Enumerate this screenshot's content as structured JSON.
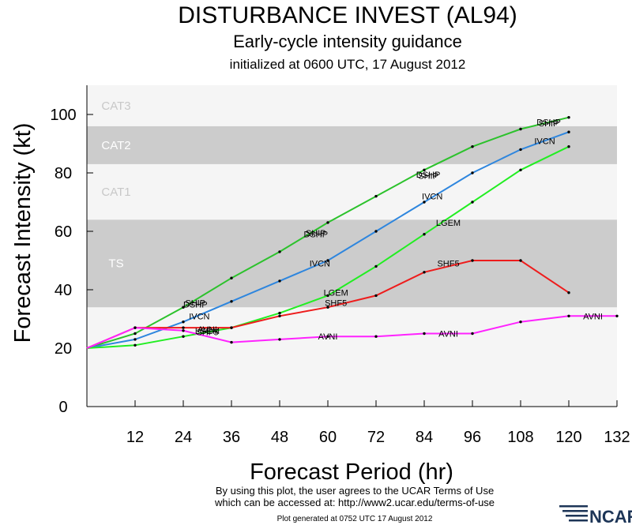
{
  "title": "DISTURBANCE INVEST (AL94)",
  "subtitle": "Early-cycle intensity guidance",
  "initialized": "initialized at 0600 UTC, 17 August 2012",
  "footer": {
    "terms_line1": "By using this plot, the user agrees to the UCAR Terms of Use",
    "terms_line2": "which can be accessed at: http://www2.ucar.edu/terms-of-use",
    "generated": "Plot generated at 0752 UTC   17 August 2012",
    "logo": "NCAR"
  },
  "colors": {
    "bands_dark": "#cccccc",
    "bands_light": "#f5f5f5",
    "ship_dshp": "#2cc22c",
    "ivcn": "#2e86de",
    "lgem": "#22ee22",
    "shf5": "#ee1c1c",
    "avni": "#ff22ff"
  },
  "chart_data": {
    "type": "line",
    "xlabel": "Forecast Period (hr)",
    "ylabel": "Forecast Intensity (kt)",
    "xlim": [
      0,
      132
    ],
    "ylim": [
      0,
      110
    ],
    "xticks": [
      12,
      24,
      36,
      48,
      60,
      72,
      84,
      96,
      108,
      120,
      132
    ],
    "yticks": [
      0,
      20,
      40,
      60,
      80,
      100
    ],
    "bands": [
      {
        "label": "TS",
        "ymin": 34,
        "ymax": 64,
        "shade": "dark"
      },
      {
        "label": "CAT1",
        "ymin": 64,
        "ymax": 83,
        "shade": "light"
      },
      {
        "label": "CAT2",
        "ymin": 83,
        "ymax": 96,
        "shade": "dark"
      },
      {
        "label": "CAT3",
        "ymin": 96,
        "ymax": 110,
        "shade": "light"
      }
    ],
    "series": [
      {
        "name": "SHIP/DSHP",
        "color_key": "ship_dshp",
        "x": [
          0,
          12,
          24,
          36,
          48,
          60,
          72,
          84,
          96,
          108,
          120
        ],
        "y": [
          20,
          25,
          34,
          44,
          53,
          63,
          72,
          81,
          89,
          95,
          99
        ],
        "labels": [
          {
            "text": "DSHP",
            "x": 27,
            "y": 35
          },
          {
            "text": "SHIP",
            "x": 27,
            "y": 35.5
          },
          {
            "text": "DSHP",
            "x": 57,
            "y": 59
          },
          {
            "text": "SHIP",
            "x": 57,
            "y": 59.5
          },
          {
            "text": "SHIP",
            "x": 85,
            "y": 79
          },
          {
            "text": "DSHP",
            "x": 85,
            "y": 79.5
          },
          {
            "text": "SHIP",
            "x": 115,
            "y": 97
          },
          {
            "text": "DSHP",
            "x": 115,
            "y": 97.5
          }
        ]
      },
      {
        "name": "IVCN",
        "color_key": "ivcn",
        "x": [
          0,
          12,
          24,
          36,
          48,
          60,
          72,
          84,
          96,
          108,
          120
        ],
        "y": [
          20,
          23,
          29,
          36,
          43,
          50,
          60,
          70,
          80,
          88,
          94
        ],
        "labels": [
          {
            "text": "IVCN",
            "x": 28,
            "y": 31
          },
          {
            "text": "IVCN",
            "x": 58,
            "y": 49
          },
          {
            "text": "IVCN",
            "x": 86,
            "y": 72
          },
          {
            "text": "IVCN",
            "x": 114,
            "y": 91
          }
        ]
      },
      {
        "name": "LGEM",
        "color_key": "lgem",
        "x": [
          0,
          12,
          24,
          36,
          48,
          60,
          72,
          84,
          96,
          108,
          120
        ],
        "y": [
          20,
          21,
          24,
          27,
          32,
          38,
          48,
          59,
          70,
          81,
          89
        ],
        "labels": [
          {
            "text": "LGEM",
            "x": 30,
            "y": 26
          },
          {
            "text": "LGEM",
            "x": 62,
            "y": 39
          },
          {
            "text": "LGEM",
            "x": 90,
            "y": 63
          }
        ]
      },
      {
        "name": "SHF5",
        "color_key": "shf5",
        "x": [
          0,
          12,
          24,
          36,
          48,
          60,
          72,
          84,
          96,
          108,
          120
        ],
        "y": [
          20,
          27,
          27,
          27,
          31,
          34,
          38,
          46,
          50,
          50,
          39
        ],
        "labels": [
          {
            "text": "SHF5",
            "x": 30,
            "y": 25.5
          },
          {
            "text": "SHF5",
            "x": 62,
            "y": 35.5
          },
          {
            "text": "SHF5",
            "x": 90,
            "y": 49
          }
        ]
      },
      {
        "name": "AVNI",
        "color_key": "avni",
        "x": [
          0,
          12,
          24,
          36,
          48,
          60,
          72,
          84,
          96,
          108,
          120,
          132
        ],
        "y": [
          20,
          27,
          26,
          22,
          23,
          24,
          24,
          25,
          25,
          29,
          31,
          31
        ],
        "labels": [
          {
            "text": "AVNI",
            "x": 30,
            "y": 26.5
          },
          {
            "text": "AVNI",
            "x": 60,
            "y": 24
          },
          {
            "text": "AVNI",
            "x": 90,
            "y": 25
          },
          {
            "text": "AVNI",
            "x": 126,
            "y": 31
          }
        ]
      }
    ]
  }
}
